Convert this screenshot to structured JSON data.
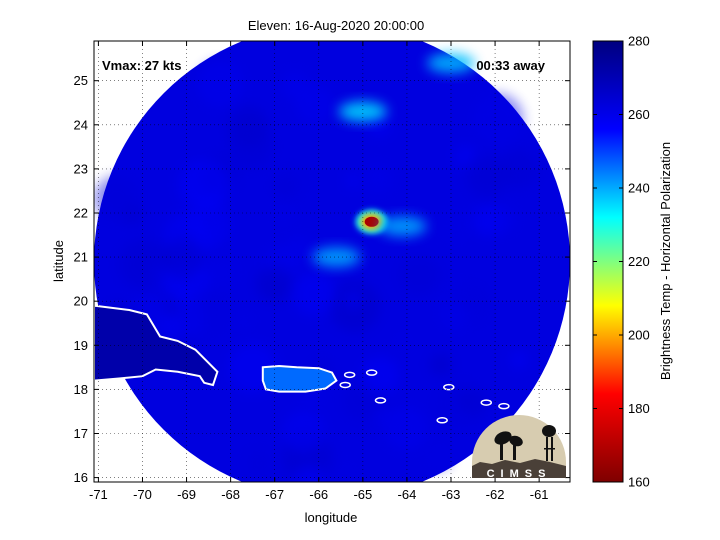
{
  "chart_data": {
    "type": "heatmap",
    "title": "Eleven: 16-Aug-2020 20:00:00",
    "xlabel": "longitude",
    "ylabel": "latitude",
    "xlim": [
      -71.1,
      -60.3
    ],
    "ylim": [
      15.9,
      25.9
    ],
    "x_ticks": [
      -71,
      -70,
      -69,
      -68,
      -67,
      -66,
      -65,
      -64,
      -63,
      -62,
      -61
    ],
    "y_ticks": [
      16,
      17,
      18,
      19,
      20,
      21,
      22,
      23,
      24,
      25
    ],
    "grid": true,
    "annotations": {
      "vmax": "Vmax: 27 kts",
      "time_away": "00:33 away"
    },
    "colorbar": {
      "label": "Brightness Temp - Horizontal Polarization",
      "range": [
        160,
        280
      ],
      "ticks": [
        160,
        180,
        200,
        220,
        240,
        260,
        280
      ],
      "colors": [
        "#7f0000",
        "#ff0000",
        "#ffff00",
        "#00ffff",
        "#0000ff",
        "#00007f"
      ]
    },
    "swath": {
      "center_lon": -65.7,
      "center_lat": 20.9,
      "background_tb": 262
    },
    "features": [
      {
        "name": "convective core",
        "lon": -64.8,
        "lat": 21.8,
        "tb": 168
      },
      {
        "name": "convective band",
        "lon": -64.1,
        "lat": 21.7,
        "tb": 240
      },
      {
        "name": "cloud cluster",
        "lon": -65.0,
        "lat": 24.3,
        "tb": 235
      },
      {
        "name": "cloud cluster",
        "lon": -65.6,
        "lat": 21.0,
        "tb": 240
      },
      {
        "name": "cloud cluster",
        "lon": -63.0,
        "lat": 25.4,
        "tb": 238
      }
    ],
    "land": [
      {
        "name": "Hispaniola",
        "tb": 272
      },
      {
        "name": "Puerto Rico",
        "tb": 246
      }
    ]
  },
  "logo": {
    "text": "CIMSS"
  }
}
